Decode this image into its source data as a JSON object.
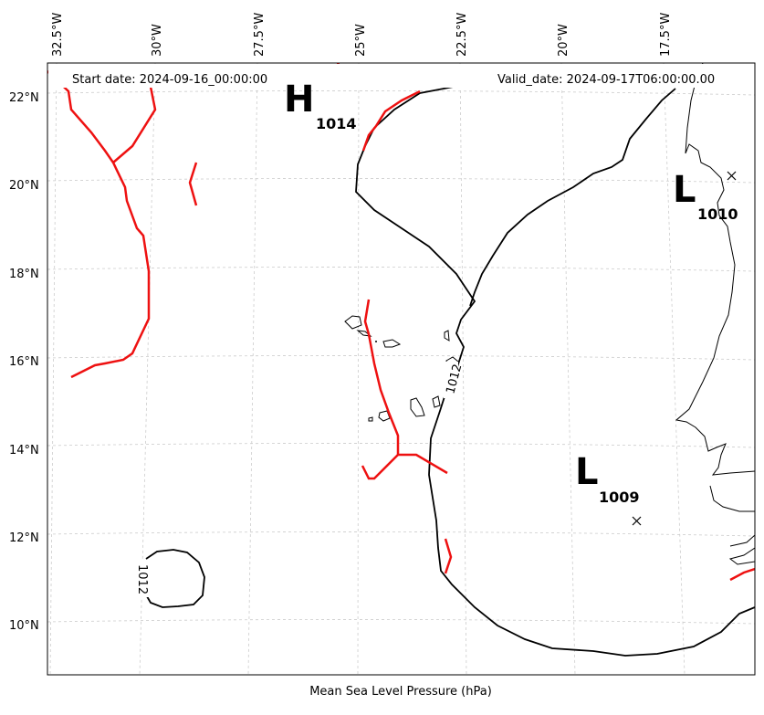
{
  "header": {
    "start_date": "Start date: 2024-09-16_00:00:00",
    "valid_date": "Valid_date: 2024-09-17T06:00:00.00"
  },
  "caption": "Mean Sea Level Pressure (hPa)",
  "axes": {
    "lon_labels": [
      "32.5°W",
      "30°W",
      "27.5°W",
      "25°W",
      "22.5°W",
      "20°W",
      "17.5°W"
    ],
    "lat_labels": [
      "22°N",
      "20°N",
      "18°N",
      "16°N",
      "14°N",
      "12°N",
      "10°N"
    ]
  },
  "pressure_centers": [
    {
      "symbol": "H",
      "value": "1014"
    },
    {
      "symbol": "L",
      "value": "1010"
    },
    {
      "symbol": "L",
      "value": "1009"
    }
  ],
  "contour_labels": [
    "1012",
    "1012"
  ],
  "colors": {
    "isobar": "#000000",
    "front": "#ee1111",
    "gridline": "#cccccc"
  }
}
